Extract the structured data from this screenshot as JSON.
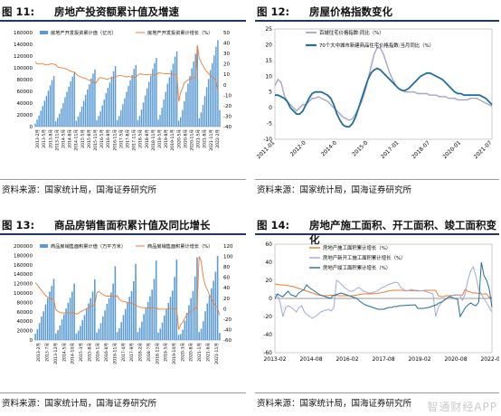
{
  "panels": [
    {
      "fig": "图 11:",
      "title": "房地产投资额累计值及增速",
      "source": "资料来源：国家统计局，国海证券研究所"
    },
    {
      "fig": "图 12:",
      "title": "房屋价格指数变化",
      "source": "资料来源：国家统计局，国海证券研究所"
    },
    {
      "fig": "图 13:",
      "title": "商品房销售面积累计值及同比增长",
      "source": "资料来源：国家统计局，国海证券研究所"
    },
    {
      "fig": "图 14:",
      "title": "房地产施工面积、开工面积、竣工面积变化",
      "source": "资料来源：国家统计局，国海证券研究所"
    }
  ],
  "watermark": "智通财经APP",
  "colors": {
    "bar": "#5b9bd5",
    "orange": "#ed7d31",
    "grey_line": "#a5a5c8",
    "navy_line": "#1f6e9c",
    "header_rule": "#1f3864"
  },
  "chart_data": [
    {
      "type": "bar",
      "series": [
        {
          "name": "房地产开发投资累计值（亿元）",
          "kind": "bar",
          "axis": "left",
          "values": [
            5000,
            12000,
            19000,
            27000,
            35000,
            44000,
            52000,
            61000,
            70000,
            79000,
            86000,
            9000,
            15000,
            22000,
            31000,
            40000,
            50000,
            59000,
            68000,
            77000,
            85000,
            93000,
            10000,
            17000,
            25000,
            34000,
            44000,
            54000,
            63000,
            72000,
            82000,
            90000,
            97000,
            11000,
            18000,
            26000,
            36000,
            46000,
            57000,
            66000,
            75000,
            85000,
            94000,
            103000,
            11000,
            18000,
            28000,
            38000,
            48000,
            59000,
            69000,
            79000,
            88000,
            98000,
            105000,
            11000,
            18000,
            29000,
            41000,
            53000,
            65000,
            76000,
            87000,
            98000,
            108000,
            117000,
            12000,
            20000,
            32000,
            46000,
            59000,
            73000,
            84000,
            96000,
            107000,
            119000,
            128000,
            10000,
            16000,
            28000,
            43000,
            59000,
            73000,
            86000,
            99000,
            111000,
            124000,
            137000,
            14000,
            24000,
            37000,
            52000,
            67000,
            81000,
            96000,
            108000,
            121000,
            136000,
            147000,
            28000
          ]
        },
        {
          "name": "房地产开发投资累计增长（%）",
          "kind": "line",
          "axis": "right",
          "values": [
            22,
            20,
            20,
            20,
            20,
            19.5,
            19,
            19,
            20,
            20,
            19.8,
            19,
            17,
            16.5,
            16.2,
            16,
            15.5,
            15,
            14,
            13,
            12.5,
            12,
            10.4,
            8.5,
            8,
            7,
            6.5,
            6,
            5,
            4.5,
            3.5,
            3,
            1,
            3,
            6,
            7,
            6.5,
            6,
            5.5,
            5.5,
            6,
            6.5,
            7,
            7,
            8.5,
            9,
            9,
            8.5,
            8,
            7.5,
            8,
            7.5,
            7.5,
            7.3,
            7,
            9.5,
            10.5,
            10.2,
            10,
            9.8,
            9.7,
            10,
            10,
            9.6,
            9.5,
            9.5,
            11.5,
            11.2,
            11,
            10.9,
            10.5,
            10.5,
            10.5,
            10.3,
            10.2,
            9.9,
            9.9,
            -16,
            -7.5,
            -3.3,
            1.9,
            3.4,
            4.6,
            5.6,
            6.3,
            6.8,
            7,
            38,
            25.6,
            21.6,
            18.3,
            15,
            12.7,
            10.9,
            8.8,
            7.2,
            6.5,
            4.4,
            -5.4
          ]
        },
        {
          "ylim_left": [
            0,
            160000
          ],
          "ylim_right": [
            -40,
            50
          ],
          "yticks_left": [
            0,
            20000,
            40000,
            60000,
            80000,
            100000,
            120000,
            140000,
            160000
          ],
          "yticks_right": [
            -40,
            -30,
            -20,
            -10,
            0,
            10,
            20,
            30,
            40,
            50
          ],
          "xtick_labels": [
            "2013-2月",
            "2013-5月",
            "2013-8月",
            "2013-11月",
            "2014-5月",
            "2014-8月",
            "2014-11月",
            "2015-5月",
            "2015-8月",
            "2015-11月",
            "2016-5月",
            "2016-8月",
            "2016-11月",
            "2017-5月",
            "2017-8月",
            "2017-11月",
            "2018-5月",
            "2018-8月",
            "2018-11月",
            "2019-5月",
            "2019-8月",
            "2019-11月",
            "2020-5月",
            "2020-8月",
            "2020-11月",
            "2021-5月",
            "2021-8月",
            "2021-11月",
            "2022-2月"
          ]
        }
      ]
    },
    {
      "type": "line",
      "series": [
        {
          "name": "百城住宅价格指数:同比（%）",
          "values": [
            7,
            9,
            8,
            4,
            2,
            1,
            0,
            -1,
            0,
            1,
            1,
            2,
            3,
            3,
            3.5,
            3,
            2.5,
            2,
            1,
            0,
            -1,
            -2,
            -3,
            -3.5,
            -4,
            -3.5,
            -2,
            0,
            2,
            5,
            9,
            13,
            17,
            19,
            19,
            17,
            14,
            11,
            9,
            7,
            6,
            5.5,
            5,
            5,
            5,
            5,
            4.5,
            4.5,
            4.5,
            4.5,
            4,
            4,
            4,
            3.5,
            3.5,
            3.5,
            3,
            3,
            3,
            2.5,
            2.5,
            2.5,
            2.5,
            3,
            3,
            3,
            2.5,
            2,
            1.5,
            1,
            0.5
          ]
        },
        {
          "name": "70个大中城市新建商品住宅价格指数:当月同比（%）",
          "values": [
            4,
            4,
            3.5,
            3,
            2,
            0,
            -1,
            -2,
            -2,
            -1,
            1,
            3,
            4.5,
            5,
            5,
            5,
            4.5,
            4,
            3,
            1,
            -2,
            -4,
            -5.5,
            -6,
            -6,
            -5,
            -3,
            0,
            3,
            6,
            9,
            11,
            12,
            12.5,
            12,
            11,
            10,
            9,
            8,
            7,
            6,
            5.5,
            5.5,
            6,
            7,
            8,
            9,
            10,
            10.5,
            11,
            11,
            10.5,
            10,
            9.5,
            9,
            8,
            7,
            6,
            5,
            4.5,
            4.5,
            4,
            4,
            4,
            4,
            4,
            4,
            3.5,
            3,
            2,
            1
          ]
        },
        {
          "ylim": [
            -10,
            25
          ],
          "yticks": [
            -10,
            -5,
            0,
            5,
            10,
            15,
            20,
            25
          ],
          "xtick_labels": [
            "2011-01",
            "2012-08",
            "2014-03",
            "2015-10",
            "2017-05",
            "2018-12",
            "2020-07"
          ],
          "display_xtick_labels": [
            "2011-01",
            "2012-0",
            "2014-0",
            "2015-0",
            "2017-01",
            "2018-07",
            "2020-01",
            "2021-07"
          ]
        }
      ]
    },
    {
      "type": "bar",
      "series": [
        {
          "name": "商品房销售面积累计值（万平方米）",
          "kind": "bar",
          "axis": "left",
          "values": [
            13000,
            23000,
            36000,
            50000,
            61000,
            76000,
            89000,
            103000,
            115000,
            130000,
            14000,
            21000,
            31000,
            44000,
            55000,
            67000,
            79000,
            90000,
            103000,
            120000,
            14000,
            20000,
            30000,
            42000,
            53000,
            66000,
            78000,
            89000,
            103000,
            129000,
            16000,
            24000,
            36000,
            50000,
            63000,
            77000,
            89000,
            101000,
            120000,
            157000,
            17000,
            25000,
            38000,
            53000,
            66000,
            80000,
            92000,
            104000,
            125000,
            162000,
            17000,
            26000,
            39000,
            55000,
            68000,
            81000,
            93000,
            107000,
            130000,
            169000,
            16000,
            24000,
            37000,
            52000,
            66000,
            79000,
            92000,
            105000,
            134000,
            171000,
            11000,
            13000,
            22000,
            41000,
            58000,
            74000,
            89000,
            104000,
            135000,
            176000,
            17000,
            24000,
            40000,
            61000,
            78000,
            95000,
            110000,
            126000,
            145000,
            179000,
            15000
          ]
        },
        {
          "name": "商品房销售面积累计增长（%）",
          "kind": "line",
          "axis": "right",
          "values": [
            50,
            45,
            40,
            35,
            30,
            25,
            22,
            20,
            18,
            17,
            -2,
            -5,
            -7,
            -8,
            -8,
            -8,
            -8,
            -8,
            -8,
            -7.6,
            -10,
            -9,
            -6,
            -4,
            -2,
            0,
            2,
            4,
            6,
            6.5,
            30,
            33,
            30,
            27,
            25,
            24,
            24,
            24,
            24,
            22.5,
            25,
            18,
            15,
            14,
            13,
            12,
            11,
            10,
            9,
            7.7,
            4,
            3,
            2,
            2,
            1.5,
            1.5,
            1.5,
            2,
            1.5,
            1.3,
            -1,
            -1,
            -1,
            -1,
            -1,
            0,
            0,
            0,
            0,
            -0.1,
            -40,
            -30,
            -26,
            -18,
            -12,
            -7,
            -4,
            -2,
            0,
            2.6,
            100,
            90,
            60,
            45,
            36,
            27,
            20,
            12,
            5,
            1.9,
            -13
          ]
        },
        {
          "ylim_left": [
            0,
            200000
          ],
          "ylim_right": [
            -60,
            120
          ],
          "yticks_left": [
            0,
            20000,
            40000,
            60000,
            80000,
            100000,
            120000,
            140000,
            160000,
            180000,
            200000
          ],
          "yticks_right": [
            -60,
            -40,
            -20,
            0,
            20,
            40,
            60,
            80,
            100,
            120
          ],
          "xtick_labels": [
            "2013-2月",
            "2013-7月",
            "2013-12月",
            "2014-5月",
            "2014-10月",
            "2015-3月",
            "2015-8月",
            "2016-1月",
            "2016-6月",
            "2016-11月",
            "2017-4月",
            "2017-9月",
            "2018-2月",
            "2018-7月",
            "2018-12月",
            "2019-5月",
            "2019-10月",
            "2020-3月",
            "2020-8月",
            "2021-1月",
            "2021-6月",
            "2021-11月"
          ]
        }
      ]
    },
    {
      "type": "line",
      "series": [
        {
          "name": "房地产施工面积累计增长（%）",
          "color": "#ed7d31",
          "values": [
            16,
            15.5,
            15,
            15,
            14.5,
            14,
            13.5,
            13,
            12,
            11,
            10,
            9,
            8,
            7,
            6,
            5,
            4,
            3.5,
            3,
            3,
            3.2,
            3.5,
            3.4,
            3.3,
            3,
            3,
            3,
            3,
            3,
            3,
            3.5,
            4,
            4.5,
            5,
            5,
            5,
            5,
            5.2,
            5.5,
            6,
            6.5,
            7,
            8,
            8.5,
            9,
            9,
            9,
            9,
            8.8,
            8.8,
            8.7,
            8.5,
            8.5,
            8.3,
            8.2,
            8.5,
            9,
            9,
            9,
            9,
            9,
            3,
            2,
            2,
            3,
            3,
            3.5,
            3.5,
            3.7,
            3.7,
            3.8,
            10,
            8,
            7,
            6,
            6,
            5.5,
            5,
            5,
            5,
            1,
            1
          ]
        },
        {
          "name": "房地产新开工施工面积累计增长（%）",
          "color": "#9fa8da",
          "values": [
            5,
            3,
            -5,
            -20,
            -10,
            -8,
            -10,
            -12,
            -15,
            -10,
            -8,
            -15,
            -18,
            -20,
            -22,
            -20,
            -18,
            -15,
            -14,
            -13,
            -12,
            -14,
            -10,
            20,
            18,
            15,
            12,
            10,
            8,
            8,
            10,
            12,
            11,
            8,
            7,
            6,
            6,
            7,
            8,
            10,
            12,
            13,
            15,
            16,
            17,
            18,
            17,
            12,
            10,
            8,
            9,
            10,
            9,
            9,
            8.5,
            8.5,
            8,
            7,
            6,
            5,
            -20,
            -10,
            -5,
            -2,
            0,
            2,
            3,
            4,
            4,
            4,
            -2,
            5,
            20,
            30,
            35,
            25,
            10,
            5,
            0,
            -5,
            -10,
            -15
          ]
        },
        {
          "name": "房地产竣工面积累计增长（%）",
          "color": "#1f6e9c",
          "values": [
            0,
            5,
            3,
            2,
            5,
            8,
            4,
            3,
            2,
            6,
            8,
            10,
            15,
            12,
            10,
            8,
            6,
            4,
            3,
            2,
            1,
            0,
            3,
            4,
            5,
            6,
            5,
            4,
            3,
            2,
            1,
            0,
            -3,
            -5,
            -7,
            -8,
            -9,
            -10,
            -11,
            -12,
            -12,
            -12,
            -11,
            -10,
            -10,
            -9,
            -9,
            -8,
            -8,
            -7.8,
            -7.6,
            -7.4,
            -7.2,
            -7,
            -11,
            -11,
            -11,
            -10.5,
            -10,
            -9,
            -8,
            -7,
            -5,
            -4,
            -2,
            0,
            2,
            1,
            0,
            -1,
            -20,
            -15,
            -10,
            -7,
            -5,
            -7,
            -8,
            -4,
            40,
            25,
            20,
            10,
            -10
          ]
        },
        {
          "ylim": [
            -60,
            60
          ],
          "yticks": [
            -60,
            -40,
            -20,
            0,
            20,
            40,
            60
          ],
          "xtick_labels": [
            "2013-02",
            "2014-08",
            "2016-02",
            "2017-08",
            "2019-02",
            "2020-08",
            "2022-02"
          ]
        }
      ]
    }
  ]
}
